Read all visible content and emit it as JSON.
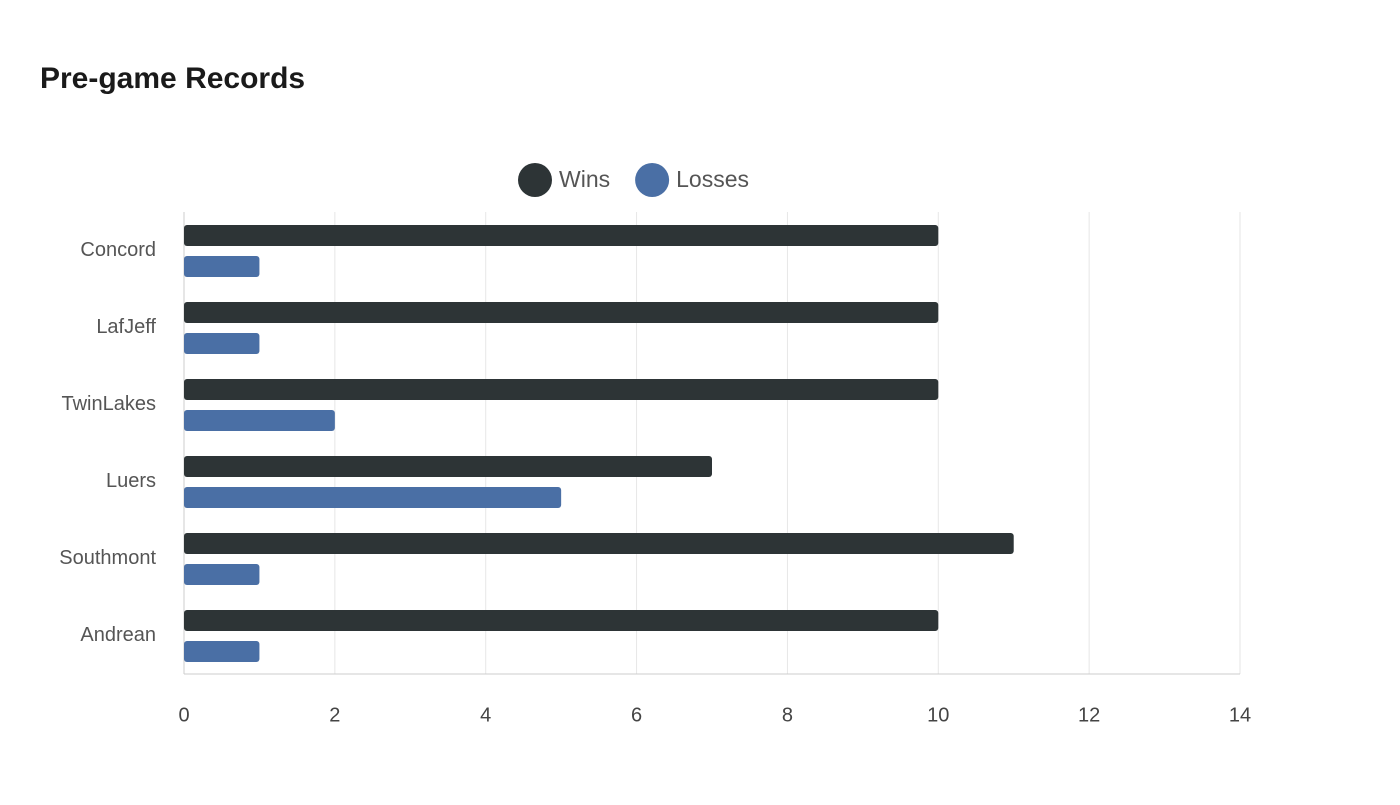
{
  "chart_data": {
    "type": "barh",
    "title": "Pre-game Records",
    "categories": [
      "Concord",
      "LafJeff",
      "TwinLakes",
      "Luers",
      "Southmont",
      "Andrean"
    ],
    "series": [
      {
        "name": "Wins",
        "color": "#2d3436",
        "values": [
          10,
          10,
          10,
          7,
          11,
          10
        ]
      },
      {
        "name": "Losses",
        "color": "#4a6fa5",
        "values": [
          1,
          1,
          2,
          5,
          1,
          1
        ]
      }
    ],
    "xlim": [
      0,
      14
    ],
    "xticks": [
      0,
      2,
      4,
      6,
      8,
      10,
      12,
      14
    ],
    "grid": true,
    "legend": "top"
  }
}
